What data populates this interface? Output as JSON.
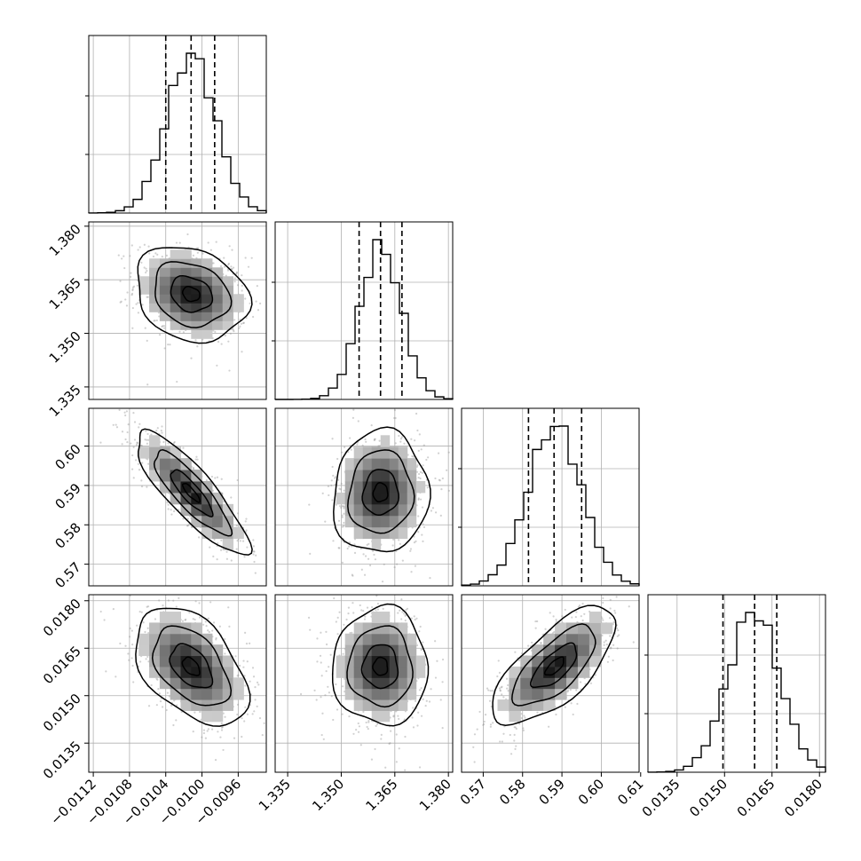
{
  "chart_data": {
    "type": "corner",
    "params": [
      {
        "ticks": [
          -0.0112,
          -0.0108,
          -0.0104,
          -0.01,
          -0.0096
        ],
        "tick_labels": [
          "−0.0112",
          "−0.0108",
          "−0.0104",
          "−0.0100",
          "−0.0096"
        ],
        "range": [
          -0.01125,
          -0.00929
        ],
        "quantiles": [
          -0.0104,
          -0.01012,
          -0.00986
        ],
        "mean": -0.01012,
        "sd": 0.00027
      },
      {
        "ticks": [
          1.335,
          1.35,
          1.365,
          1.38
        ],
        "tick_labels": [
          "1.335",
          "1.350",
          "1.365",
          "1.380"
        ],
        "range": [
          1.3315,
          1.3812
        ],
        "quantiles": [
          1.355,
          1.361,
          1.367
        ],
        "mean": 1.361,
        "sd": 0.0058
      },
      {
        "ticks": [
          0.57,
          0.58,
          0.59,
          0.6,
          0.61
        ],
        "tick_labels": [
          "0.57",
          "0.58",
          "0.59",
          "0.60",
          "0.61"
        ],
        "range": [
          0.5645,
          0.6096
        ],
        "quantiles": [
          0.5815,
          0.588,
          0.595
        ],
        "mean": 0.5882,
        "sd": 0.0068
      },
      {
        "ticks": [
          0.0135,
          0.015,
          0.0165,
          0.018
        ],
        "tick_labels": [
          "0.0135",
          "0.0150",
          "0.0165",
          "0.0180"
        ],
        "range": [
          0.01258,
          0.01819
        ],
        "quantiles": [
          0.01495,
          0.01595,
          0.01665
        ],
        "mean": 0.01592,
        "sd": 0.00081
      }
    ],
    "correlations": [
      [
        1,
        -0.2,
        -0.85,
        -0.45
      ],
      [
        -0.2,
        1,
        0.05,
        0.0
      ],
      [
        -0.85,
        0.05,
        1,
        0.7
      ],
      [
        -0.45,
        0.0,
        0.7,
        1
      ]
    ],
    "hist_bins": 20,
    "contour_levels": 3,
    "grid": true,
    "colors": {
      "line": "#000000",
      "grid": "#b0b0b0",
      "points": "#9a9a9a",
      "frame": "#000000"
    }
  }
}
